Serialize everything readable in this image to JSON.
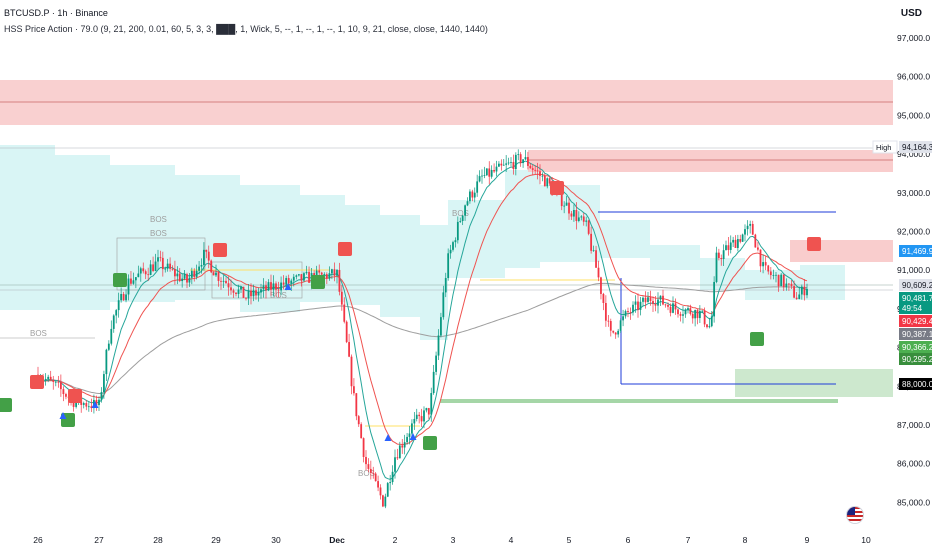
{
  "header": {
    "symbol": "BTCUSD.P · 1h · Binance",
    "indicator": "HSS Price Action  · 79.0 (9, 21, 200, 0.01, 60, 5, 3, 3, ███, 1, Wick, 5, --, 1, --, 1, --, 1, 10, 9, 21, close, close, 1440, 1440)",
    "currency": "USD"
  },
  "chart_data": {
    "type": "candlestick",
    "x_ticks": [
      "26",
      "27",
      "28",
      "29",
      "30",
      "Dec",
      "2",
      "3",
      "4",
      "5",
      "6",
      "7",
      "8",
      "9",
      "10"
    ],
    "y_ticks": [
      "97,000.0",
      "96,000.0",
      "95,000.0",
      "94,000.0",
      "93,000.0",
      "92,000.0",
      "91,000.0",
      "90,000.0",
      "89,000.0",
      "88,000.0",
      "87,000.0",
      "86,000.0",
      "85,000.0"
    ],
    "ylim": [
      84600,
      97500
    ],
    "price_path": [
      [
        0,
        88.3
      ],
      [
        0.3,
        88.0
      ],
      [
        0.6,
        87.6
      ],
      [
        1.0,
        87.5
      ],
      [
        1.2,
        89.6
      ],
      [
        1.5,
        90.7
      ],
      [
        2.0,
        91.2
      ],
      [
        2.5,
        90.7
      ],
      [
        2.8,
        91.4
      ],
      [
        3.0,
        90.9
      ],
      [
        3.5,
        90.3
      ],
      [
        4.0,
        90.6
      ],
      [
        4.5,
        90.8
      ],
      [
        5.0,
        90.9
      ],
      [
        5.3,
        87.6
      ],
      [
        5.5,
        86.0
      ],
      [
        5.8,
        85.0
      ],
      [
        6.0,
        86.2
      ],
      [
        6.3,
        87.0
      ],
      [
        6.6,
        87.4
      ],
      [
        6.9,
        91.2
      ],
      [
        7.2,
        92.7
      ],
      [
        7.5,
        93.4
      ],
      [
        7.8,
        93.6
      ],
      [
        8.2,
        93.9
      ],
      [
        8.6,
        93.3
      ],
      [
        9.0,
        92.6
      ],
      [
        9.3,
        92.1
      ],
      [
        9.5,
        90.8
      ],
      [
        9.7,
        89.3
      ],
      [
        10.0,
        89.9
      ],
      [
        10.4,
        90.3
      ],
      [
        10.8,
        90.0
      ],
      [
        11.2,
        89.9
      ],
      [
        11.4,
        89.5
      ],
      [
        11.5,
        91.3
      ],
      [
        11.8,
        91.7
      ],
      [
        12.1,
        92.1
      ],
      [
        12.3,
        91.0
      ],
      [
        12.6,
        90.7
      ],
      [
        12.85,
        90.3
      ],
      [
        13.0,
        90.6
      ]
    ],
    "price_labels": [
      {
        "label": "High",
        "value": "94,164.3",
        "color": "#e0e3eb",
        "text_color": "#131722"
      },
      {
        "value": "91,469.9",
        "color": "#2196f3",
        "text_color": "#ffffff"
      },
      {
        "value": "90,609.2",
        "color": "#e0e3eb",
        "text_color": "#131722"
      },
      {
        "value": "90,481.7",
        "color": "#089981",
        "text_color": "#ffffff"
      },
      {
        "value": "49:54",
        "color": "#089981",
        "text_color": "#ffffff"
      },
      {
        "value": "90,429.4",
        "color": "#f23645",
        "text_color": "#ffffff"
      },
      {
        "value": "90,387.1",
        "color": "#787b86",
        "text_color": "#ffffff"
      },
      {
        "value": "90,366.2",
        "color": "#4caf50",
        "text_color": "#ffffff"
      },
      {
        "value": "90,295.2",
        "color": "#388e3c",
        "text_color": "#ffffff"
      },
      {
        "value": "88,000.0",
        "color": "#000000",
        "text_color": "#ffffff"
      }
    ],
    "annotations": [
      "BOS",
      "BOS",
      "BOS",
      "BOS",
      "BOS",
      "BOS"
    ],
    "colors": {
      "bull": "#089981",
      "bear": "#f23645",
      "ema_fast": "#26a69a",
      "ema_slow": "#ef5350",
      "sma_long": "#9e9e9e",
      "supply": "#f8c8c8",
      "demand": "#c8e6c9",
      "cloud": "#ccf2f2"
    }
  }
}
